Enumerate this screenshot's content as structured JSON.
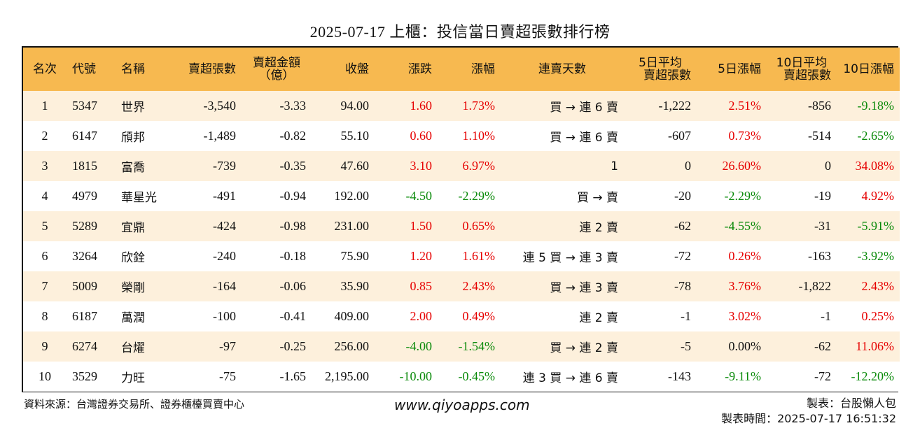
{
  "title": "2025-07-17 上櫃：投信當日賣超張數排行榜",
  "headers": {
    "rank": "名次",
    "code": "代號",
    "name": "名稱",
    "sell_lots": "賣超張數",
    "sell_amount_1": "賣超金額",
    "sell_amount_2": "（億）",
    "close": "收盤",
    "change": "漲跌",
    "pct": "漲幅",
    "streak": "連賣天數",
    "avg5_1": "5日平均",
    "avg5_2": "賣超張數",
    "pct5": "5日漲幅",
    "avg10_1": "10日平均",
    "avg10_2": "賣超張數",
    "pct10": "10日漲幅"
  },
  "rows": [
    {
      "rank": "1",
      "code": "5347",
      "name": "世界",
      "sell_lots": "-3,540",
      "sell_amount": "-3.33",
      "close": "94.00",
      "change": "1.60",
      "pct": "1.73%",
      "streak": "買 → 連 6 賣",
      "avg5": "-1,222",
      "pct5": "2.51%",
      "avg10": "-856",
      "pct10": "-9.18%",
      "colors": {
        "change": "red",
        "pct": "red",
        "pct5": "red",
        "pct10": "green"
      }
    },
    {
      "rank": "2",
      "code": "6147",
      "name": "頎邦",
      "sell_lots": "-1,489",
      "sell_amount": "-0.82",
      "close": "55.10",
      "change": "0.60",
      "pct": "1.10%",
      "streak": "買 → 連 6 賣",
      "avg5": "-607",
      "pct5": "0.73%",
      "avg10": "-514",
      "pct10": "-2.65%",
      "colors": {
        "change": "red",
        "pct": "red",
        "pct5": "red",
        "pct10": "green"
      }
    },
    {
      "rank": "3",
      "code": "1815",
      "name": "富喬",
      "sell_lots": "-739",
      "sell_amount": "-0.35",
      "close": "47.60",
      "change": "3.10",
      "pct": "6.97%",
      "streak": "1",
      "avg5": "0",
      "pct5": "26.60%",
      "avg10": "0",
      "pct10": "34.08%",
      "colors": {
        "change": "red",
        "pct": "red",
        "pct5": "red",
        "pct10": "red"
      }
    },
    {
      "rank": "4",
      "code": "4979",
      "name": "華星光",
      "sell_lots": "-491",
      "sell_amount": "-0.94",
      "close": "192.00",
      "change": "-4.50",
      "pct": "-2.29%",
      "streak": "買 → 賣",
      "avg5": "-20",
      "pct5": "-2.29%",
      "avg10": "-19",
      "pct10": "4.92%",
      "colors": {
        "change": "green",
        "pct": "green",
        "pct5": "green",
        "pct10": "red"
      }
    },
    {
      "rank": "5",
      "code": "5289",
      "name": "宜鼎",
      "sell_lots": "-424",
      "sell_amount": "-0.98",
      "close": "231.00",
      "change": "1.50",
      "pct": "0.65%",
      "streak": "連 2 賣",
      "avg5": "-62",
      "pct5": "-4.55%",
      "avg10": "-31",
      "pct10": "-5.91%",
      "colors": {
        "change": "red",
        "pct": "red",
        "pct5": "green",
        "pct10": "green"
      }
    },
    {
      "rank": "6",
      "code": "3264",
      "name": "欣銓",
      "sell_lots": "-240",
      "sell_amount": "-0.18",
      "close": "75.90",
      "change": "1.20",
      "pct": "1.61%",
      "streak": "連 5 買 → 連 3 賣",
      "avg5": "-72",
      "pct5": "0.26%",
      "avg10": "-163",
      "pct10": "-3.92%",
      "colors": {
        "change": "red",
        "pct": "red",
        "pct5": "red",
        "pct10": "green"
      }
    },
    {
      "rank": "7",
      "code": "5009",
      "name": "榮剛",
      "sell_lots": "-164",
      "sell_amount": "-0.06",
      "close": "35.90",
      "change": "0.85",
      "pct": "2.43%",
      "streak": "買 → 連 3 賣",
      "avg5": "-78",
      "pct5": "3.76%",
      "avg10": "-1,822",
      "pct10": "2.43%",
      "colors": {
        "change": "red",
        "pct": "red",
        "pct5": "red",
        "pct10": "red"
      }
    },
    {
      "rank": "8",
      "code": "6187",
      "name": "萬潤",
      "sell_lots": "-100",
      "sell_amount": "-0.41",
      "close": "409.00",
      "change": "2.00",
      "pct": "0.49%",
      "streak": "連 2 賣",
      "avg5": "-1",
      "pct5": "3.02%",
      "avg10": "-1",
      "pct10": "0.25%",
      "colors": {
        "change": "red",
        "pct": "red",
        "pct5": "red",
        "pct10": "red"
      }
    },
    {
      "rank": "9",
      "code": "6274",
      "name": "台燿",
      "sell_lots": "-97",
      "sell_amount": "-0.25",
      "close": "256.00",
      "change": "-4.00",
      "pct": "-1.54%",
      "streak": "買 → 連 2 賣",
      "avg5": "-5",
      "pct5": "0.00%",
      "avg10": "-62",
      "pct10": "11.06%",
      "colors": {
        "change": "green",
        "pct": "green",
        "pct5": "black",
        "pct10": "red"
      }
    },
    {
      "rank": "10",
      "code": "3529",
      "name": "力旺",
      "sell_lots": "-75",
      "sell_amount": "-1.65",
      "close": "2,195.00",
      "change": "-10.00",
      "pct": "-0.45%",
      "streak": "連 3 買 → 連 6 賣",
      "avg5": "-143",
      "pct5": "-9.11%",
      "avg10": "-72",
      "pct10": "-12.20%",
      "colors": {
        "change": "green",
        "pct": "green",
        "pct5": "green",
        "pct10": "green"
      }
    }
  ],
  "footer": {
    "source": "資料來源：台灣證券交易所、證券櫃檯買賣中心",
    "website": "www.qiyoapps.com",
    "maker": "製表：台股懶人包",
    "time": "製表時間：2025-07-17 16:51:32"
  },
  "colors": {
    "header_bg": "#f7b950",
    "stripe": "#fdf0dc",
    "up": "#e60000",
    "down": "#0a8a0a"
  }
}
